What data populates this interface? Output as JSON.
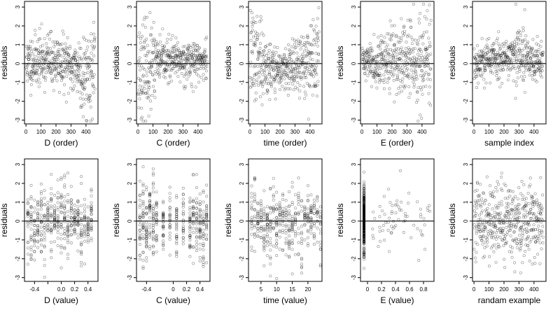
{
  "figure": {
    "background": "#ffffff",
    "point_color": "#000000"
  },
  "chart_data": [
    {
      "id": "p1",
      "type": "scatter",
      "title": "",
      "xlabel": "D (order)",
      "ylabel": "residuals",
      "xlim": [
        -10,
        480
      ],
      "ylim": [
        -3.2,
        3.3
      ],
      "xticks": [
        0,
        100,
        200,
        300,
        400
      ],
      "yticks": [
        -3,
        -2,
        -1,
        0,
        1,
        2,
        3
      ],
      "reference_line_y": 0,
      "distribution": "order",
      "trend": "tails_down_right",
      "seed": 11
    },
    {
      "id": "p2",
      "type": "scatter",
      "title": "",
      "xlabel": "C (order)",
      "ylabel": "residuals",
      "xlim": [
        -10,
        480
      ],
      "ylim": [
        -3.2,
        3.3
      ],
      "xticks": [
        0,
        100,
        200,
        300,
        400
      ],
      "yticks": [
        -3,
        -2,
        -1,
        0,
        1,
        2,
        3
      ],
      "reference_line_y": 0,
      "distribution": "order",
      "trend": "tails_down_left",
      "seed": 23
    },
    {
      "id": "p3",
      "type": "scatter",
      "title": "",
      "xlabel": "time (order)",
      "ylabel": "residuals",
      "xlim": [
        -10,
        480
      ],
      "ylim": [
        -3.2,
        3.3
      ],
      "xticks": [
        0,
        100,
        200,
        300,
        400
      ],
      "yticks": [
        -3,
        -2,
        -1,
        0,
        1,
        2,
        3
      ],
      "reference_line_y": 0,
      "distribution": "order",
      "trend": "u_shape",
      "seed": 37
    },
    {
      "id": "p4",
      "type": "scatter",
      "title": "",
      "xlabel": "E (order)",
      "ylabel": "residuals",
      "xlim": [
        -10,
        480
      ],
      "ylim": [
        -3.2,
        3.3
      ],
      "xticks": [
        0,
        100,
        200,
        300,
        400
      ],
      "yticks": [
        -3,
        -2,
        -1,
        0,
        1,
        2,
        3
      ],
      "reference_line_y": 0,
      "distribution": "order",
      "trend": "fan_right",
      "seed": 41
    },
    {
      "id": "p5",
      "type": "scatter",
      "title": "",
      "xlabel": "sample index",
      "ylabel": "residuals",
      "xlim": [
        -10,
        480
      ],
      "ylim": [
        -3.2,
        3.3
      ],
      "xticks": [
        0,
        100,
        200,
        300,
        400
      ],
      "yticks": [
        -3,
        -2,
        -1,
        0,
        1,
        2,
        3
      ],
      "reference_line_y": 0,
      "distribution": "order",
      "trend": "bump_middle",
      "seed": 53
    },
    {
      "id": "p6",
      "type": "scatter",
      "title": "",
      "xlabel": "D (value)",
      "ylabel": "residuals",
      "xlim": [
        -0.55,
        0.55
      ],
      "ylim": [
        -3.2,
        3.3
      ],
      "xticks": [
        -0.4,
        -0.2,
        0.0,
        0.2,
        0.4
      ],
      "xtick_labels": [
        "-0.4",
        "",
        "0.0",
        "0.2",
        "0.4"
      ],
      "yticks": [
        -3,
        -2,
        -1,
        0,
        1,
        2,
        3
      ],
      "reference_line_y": 0,
      "distribution": "columns",
      "columns": [
        -0.5,
        -0.45,
        -0.4,
        -0.35,
        -0.3,
        -0.25,
        -0.2,
        -0.15,
        -0.1,
        -0.05,
        0.0,
        0.05,
        0.1,
        0.15,
        0.2,
        0.25,
        0.3,
        0.35,
        0.4,
        0.45
      ],
      "seed": 61
    },
    {
      "id": "p7",
      "type": "scatter",
      "title": "",
      "xlabel": "C (value)",
      "ylabel": "residuals",
      "xlim": [
        -0.55,
        0.55
      ],
      "ylim": [
        -3.2,
        3.3
      ],
      "xticks": [
        -0.4,
        0.0,
        0.2,
        0.4
      ],
      "yticks": [
        -3,
        -2,
        -1,
        0,
        1,
        2,
        3
      ],
      "reference_line_y": 0,
      "distribution": "columns",
      "columns": [
        -0.5,
        -0.45,
        -0.4,
        -0.35,
        -0.3,
        -0.25,
        -0.15,
        -0.05,
        0.05,
        0.15,
        0.25,
        0.3,
        0.35,
        0.4,
        0.45,
        0.5
      ],
      "seed": 71
    },
    {
      "id": "p8",
      "type": "scatter",
      "title": "",
      "xlabel": "time (value)",
      "ylabel": "residuals",
      "xlim": [
        1,
        24.5
      ],
      "ylim": [
        -3.2,
        3.3
      ],
      "xticks": [
        5,
        10,
        15,
        20
      ],
      "yticks": [
        -3,
        -2,
        -1,
        0,
        1,
        2,
        3
      ],
      "reference_line_y": 0,
      "distribution": "columns",
      "columns": [
        2,
        3,
        4,
        5,
        6,
        7,
        8,
        9,
        10,
        11,
        12,
        13,
        14,
        15,
        16,
        17,
        18,
        19,
        20,
        21,
        22,
        23,
        24
      ],
      "seed": 83
    },
    {
      "id": "p9",
      "type": "scatter",
      "title": "",
      "xlabel": "E (value)",
      "ylabel": "residuals",
      "xlim": [
        -0.1,
        0.95
      ],
      "ylim": [
        -3.2,
        3.3
      ],
      "xticks": [
        0.0,
        0.2,
        0.4,
        0.6,
        0.8
      ],
      "yticks": [
        -3,
        -2,
        -1,
        0,
        1,
        2,
        3
      ],
      "reference_line_y": 0,
      "distribution": "E_value",
      "seed": 97
    },
    {
      "id": "p10",
      "type": "scatter",
      "title": "",
      "xlabel": "randam example",
      "ylabel": "residuals",
      "xlim": [
        -10,
        480
      ],
      "ylim": [
        -3.2,
        3.3
      ],
      "xticks": [
        0,
        100,
        200,
        300,
        400
      ],
      "yticks": [
        -3,
        -2,
        -1,
        0,
        1,
        2,
        3
      ],
      "reference_line_y": 0,
      "distribution": "order",
      "trend": "random",
      "seed": 101
    }
  ]
}
